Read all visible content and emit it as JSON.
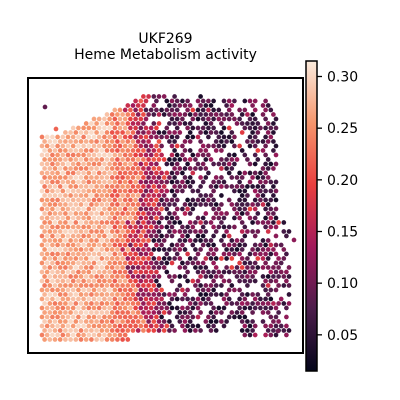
{
  "chart_data": {
    "type": "heatmap",
    "subtype": "spatial-transcriptomics-spot-map",
    "title": "UKF269",
    "subtitle": "Heme Metabolism activity",
    "xlabel": "",
    "ylabel": "",
    "colormap": "rocket",
    "colorbar": {
      "range": [
        0.015,
        0.315
      ],
      "ticks": [
        0.05,
        0.1,
        0.15,
        0.2,
        0.25,
        0.3
      ],
      "tick_labels": [
        "0.05",
        "0.10",
        "0.15",
        "0.20",
        "0.25",
        "0.30"
      ]
    },
    "regions": [
      {
        "name": "left tissue region",
        "typical_value": 0.27
      },
      {
        "name": "transition band",
        "typical_value": 0.16
      },
      {
        "name": "right tissue region",
        "typical_value": 0.08
      }
    ],
    "grid": false,
    "legend": "colorbar-right"
  }
}
